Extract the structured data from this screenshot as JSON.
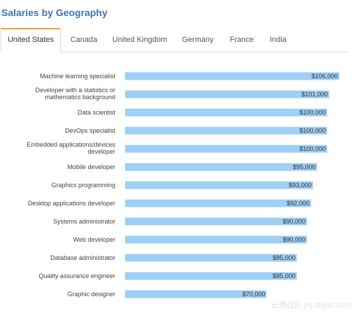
{
  "header": {
    "title": "Salaries by Geography"
  },
  "tabs": [
    {
      "label": "United States",
      "active": true
    },
    {
      "label": "Canada",
      "active": false
    },
    {
      "label": "United Kingdom",
      "active": false
    },
    {
      "label": "Germany",
      "active": false
    },
    {
      "label": "France",
      "active": false
    },
    {
      "label": "India",
      "active": false
    }
  ],
  "colors": {
    "bar": "#9ecff5",
    "title": "#3b73b9",
    "active_tab_accent": "#f0a23a"
  },
  "chart_data": {
    "type": "bar",
    "orientation": "horizontal",
    "categories": [
      [
        "Machine learning specialist"
      ],
      [
        "Developer with a statistics or",
        "mathematics background"
      ],
      [
        "Data scientist"
      ],
      [
        "DevOps specialist"
      ],
      [
        "Embedded applications/devices",
        "developer"
      ],
      [
        "Mobile developer"
      ],
      [
        "Graphics programming"
      ],
      [
        "Desktop applications developer"
      ],
      [
        "Systems administrator"
      ],
      [
        "Web developer"
      ],
      [
        "Database administrator"
      ],
      [
        "Quality assurance engineer"
      ],
      [
        "Graphic designer"
      ]
    ],
    "values": [
      106000,
      101000,
      100000,
      100000,
      100000,
      95000,
      93000,
      92000,
      90000,
      90000,
      85000,
      85000,
      70000
    ],
    "value_labels": [
      "$106,000",
      "$101,000",
      "$100,000",
      "$100,000",
      "$100,000",
      "$95,000",
      "$93,000",
      "$92,000",
      "$90,000",
      "$90,000",
      "$85,000",
      "$85,000",
      "$70,000"
    ],
    "xlim": [
      0,
      110000
    ]
  },
  "watermark": "云栖社区 yq.aliyun.com"
}
